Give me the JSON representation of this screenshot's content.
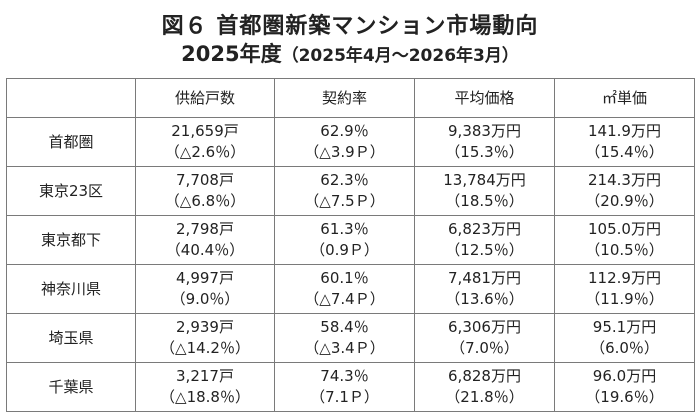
{
  "title": {
    "line1": "図６ 首都圏新築マンション市場動向",
    "line2_main": "2025年度",
    "line2_sub": "（2025年4月～2026年3月）"
  },
  "table": {
    "corner": "",
    "headers": [
      "供給戸数",
      "契約率",
      "平均価格",
      "㎡単価"
    ],
    "rows": [
      {
        "label": "首都圏",
        "cells": [
          {
            "main": "21,659戸",
            "sub": "（△2.6％）"
          },
          {
            "main": "62.9％",
            "sub": "（△3.9Ｐ）"
          },
          {
            "main": "9,383万円",
            "sub": "（15.3％）"
          },
          {
            "main": "141.9万円",
            "sub": "（15.4％）"
          }
        ]
      },
      {
        "label": "東京23区",
        "cells": [
          {
            "main": "7,708戸",
            "sub": "（△6.8％）"
          },
          {
            "main": "62.3％",
            "sub": "（△7.5Ｐ）"
          },
          {
            "main": "13,784万円",
            "sub": "（18.5％）"
          },
          {
            "main": "214.3万円",
            "sub": "（20.9％）"
          }
        ]
      },
      {
        "label": "東京都下",
        "cells": [
          {
            "main": "2,798戸",
            "sub": "（40.4％）"
          },
          {
            "main": "61.3％",
            "sub": "（0.9Ｐ）"
          },
          {
            "main": "6,823万円",
            "sub": "（12.5％）"
          },
          {
            "main": "105.0万円",
            "sub": "（10.5％）"
          }
        ]
      },
      {
        "label": "神奈川県",
        "cells": [
          {
            "main": "4,997戸",
            "sub": "（9.0％）"
          },
          {
            "main": "60.1％",
            "sub": "（△7.4Ｐ）"
          },
          {
            "main": "7,481万円",
            "sub": "（13.6％）"
          },
          {
            "main": "112.9万円",
            "sub": "（11.9％）"
          }
        ]
      },
      {
        "label": "埼玉県",
        "cells": [
          {
            "main": "2,939戸",
            "sub": "（△14.2％）"
          },
          {
            "main": "58.4％",
            "sub": "（△3.4Ｐ）"
          },
          {
            "main": "6,306万円",
            "sub": "（7.0％）"
          },
          {
            "main": "95.1万円",
            "sub": "（6.0％）"
          }
        ]
      },
      {
        "label": "千葉県",
        "cells": [
          {
            "main": "3,217戸",
            "sub": "（△18.8％）"
          },
          {
            "main": "74.3％",
            "sub": "（7.1Ｐ）"
          },
          {
            "main": "6,828万円",
            "sub": "（21.8％）"
          },
          {
            "main": "96.0万円",
            "sub": "（19.6％）"
          }
        ]
      }
    ]
  }
}
